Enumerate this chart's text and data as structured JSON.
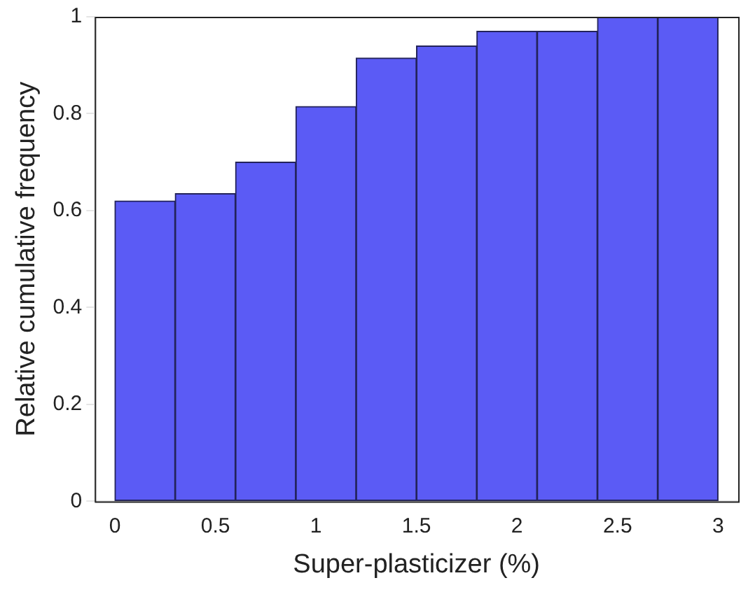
{
  "chart_data": {
    "type": "histogram",
    "xlabel": "Super-plasticizer (%)",
    "ylabel": "Relative cumulative frequency",
    "bins": [
      0,
      0.3,
      0.6,
      0.9,
      1.2,
      1.5,
      1.8,
      2.1,
      2.4,
      2.7,
      3.0
    ],
    "values": [
      0.62,
      0.635,
      0.7,
      0.815,
      0.915,
      0.94,
      0.97,
      0.97,
      1.0,
      1.0
    ],
    "color": "#5b5bf5",
    "xlim": [
      -0.1,
      3.1
    ],
    "ylim": [
      0,
      1
    ],
    "xticks": [
      0,
      0.5,
      1,
      1.5,
      2,
      2.5,
      3
    ],
    "yticks": [
      0,
      0.2,
      0.4,
      0.6,
      0.8,
      1
    ]
  }
}
